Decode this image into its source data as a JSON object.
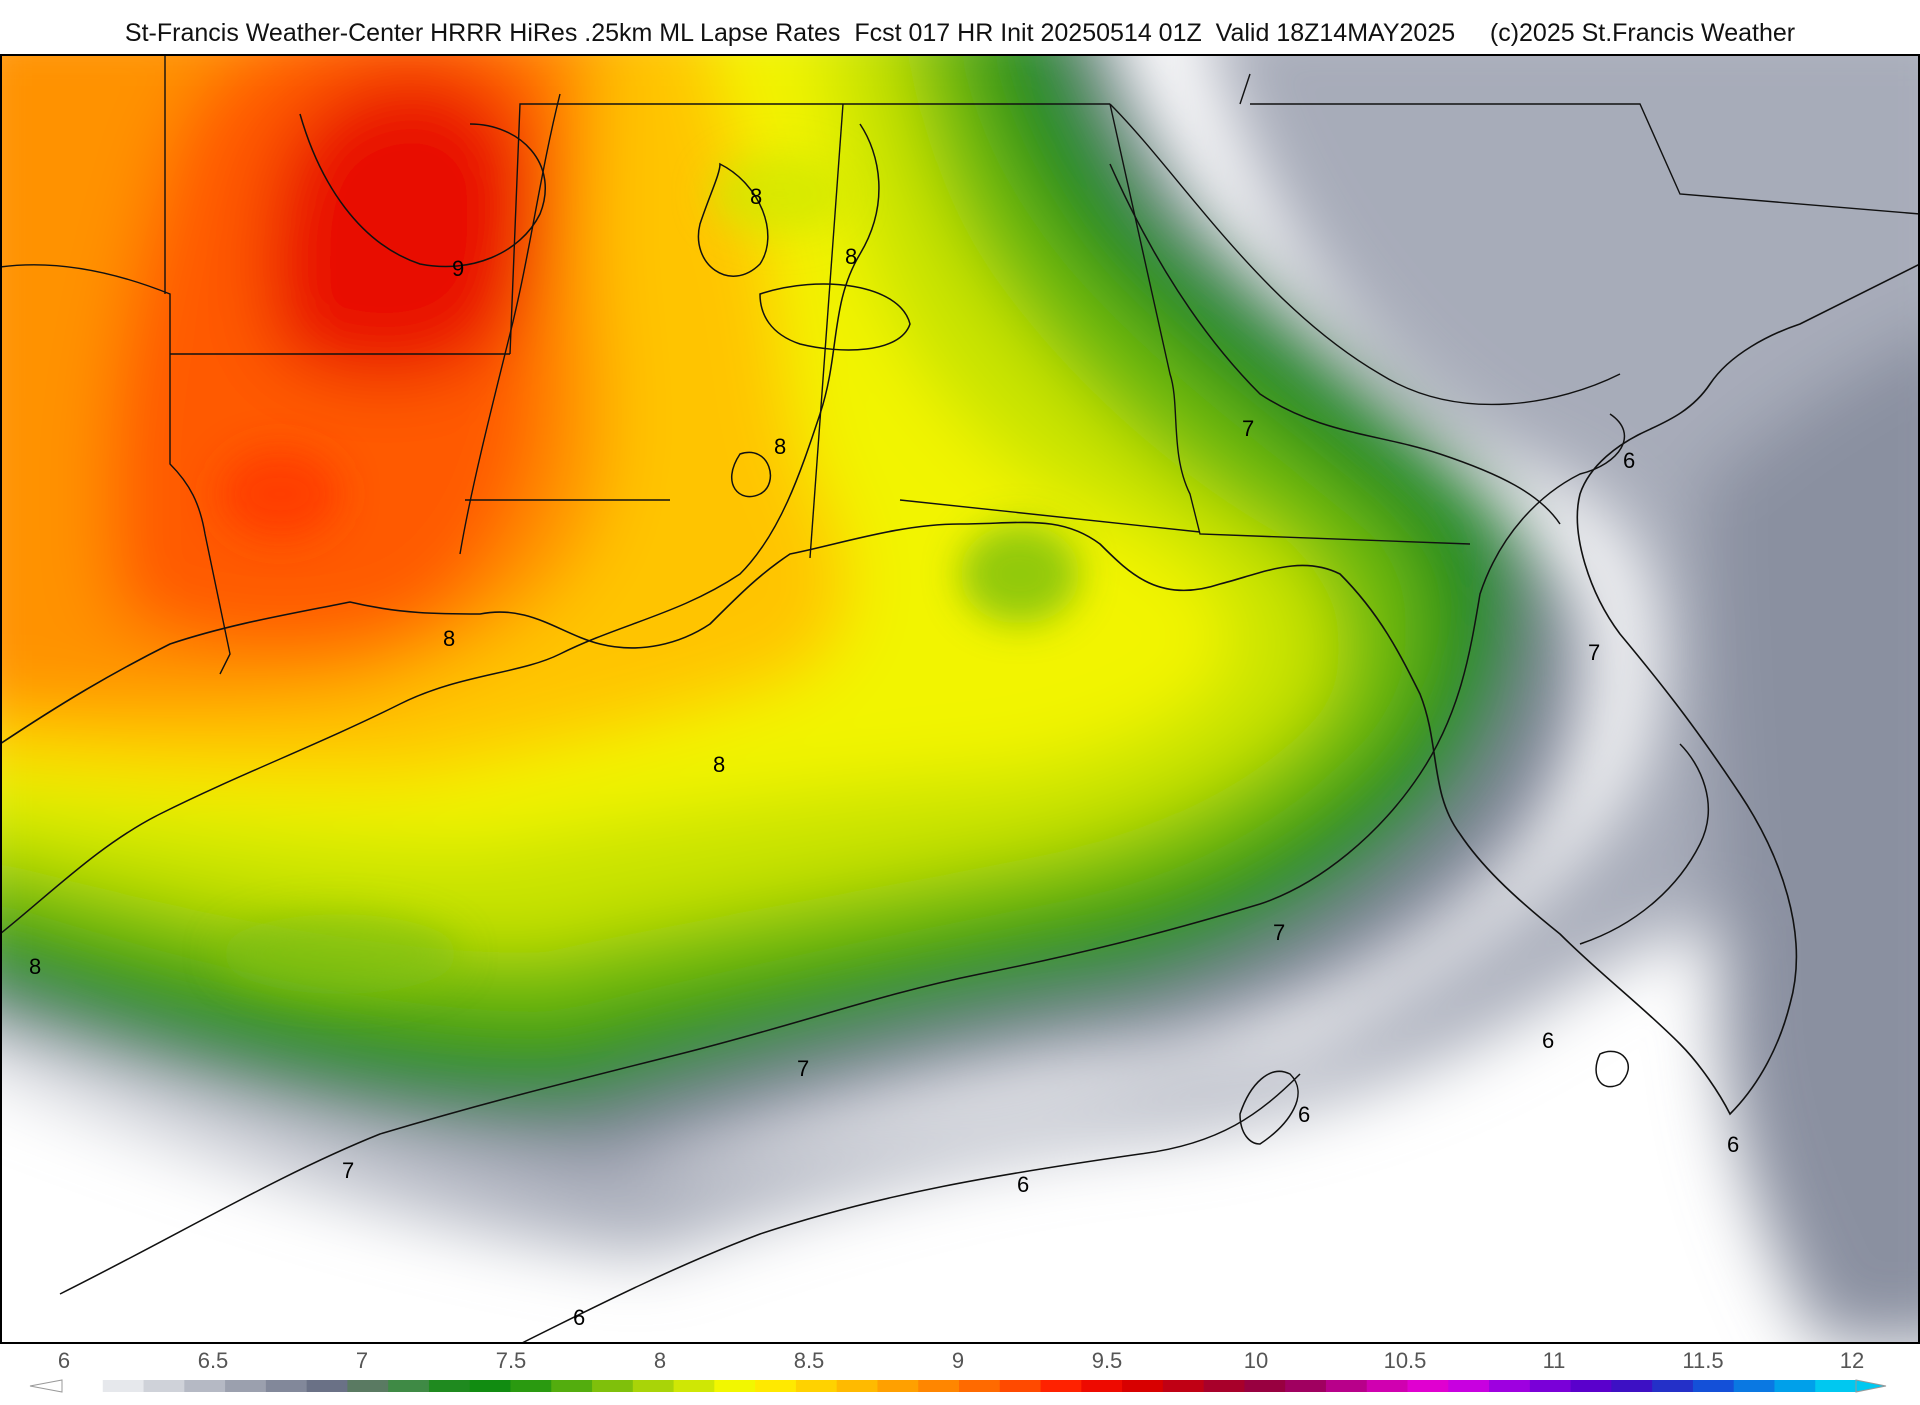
{
  "header": {
    "title": "St-Francis Weather-Center HRRR HiRes .25km ML Lapse Rates  Fcst 017 HR Init 20250514 01Z  Valid 18Z14MAY2025     (c)2025 St.Francis Weather"
  },
  "map": {
    "product": "ML Lapse Rates",
    "region": "Southeast United States and Gulf of Mexico",
    "contour_labels": [
      "9",
      "8",
      "8",
      "8",
      "8",
      "8",
      "8",
      "7",
      "7",
      "7",
      "7",
      "7",
      "6",
      "6",
      "6",
      "6",
      "6",
      "6"
    ]
  },
  "colorbar": {
    "min": 6,
    "max": 12,
    "tick_labels": [
      "6",
      "6.5",
      "7",
      "7.5",
      "8",
      "8.5",
      "9",
      "9.5",
      "10",
      "10.5",
      "11",
      "11.5",
      "12"
    ],
    "colors": [
      "#ffffff",
      "#e6e8ec",
      "#cfd2d9",
      "#b5b9c4",
      "#9ba0ae",
      "#82889a",
      "#6a7186",
      "#5a7a62",
      "#3f8a45",
      "#1f8a1f",
      "#118c11",
      "#2a9a10",
      "#53ad0e",
      "#7fc00b",
      "#a9d408",
      "#cfe705",
      "#f2f700",
      "#ffe900",
      "#ffd200",
      "#ffba00",
      "#ffa000",
      "#ff8600",
      "#ff6a00",
      "#ff4a00",
      "#ff2200",
      "#ee0a00",
      "#d80000",
      "#c00014",
      "#a8002a",
      "#980040",
      "#a00060",
      "#b8008a",
      "#d000b0",
      "#e000d0",
      "#c800e0",
      "#9e00e0",
      "#7a00d8",
      "#5a00cc",
      "#3d10c4",
      "#2430c8",
      "#1450d8",
      "#0a78e2",
      "#00a0ea",
      "#00c8f0"
    ]
  }
}
